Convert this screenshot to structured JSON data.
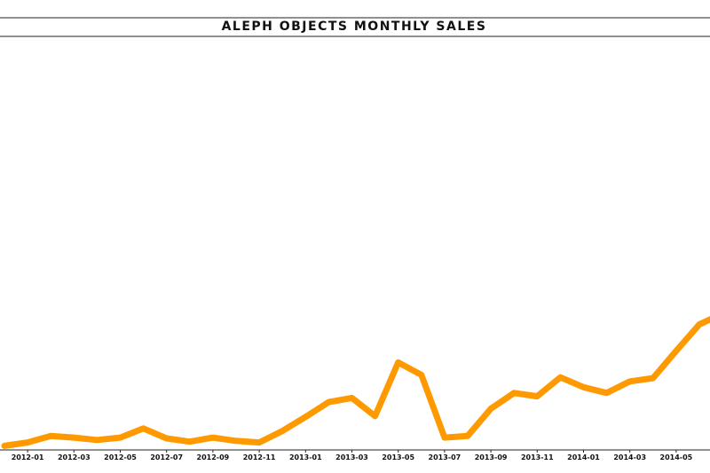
{
  "chart_data": {
    "type": "line",
    "title": "ALEPH OBJECTS MONTHLY SALES",
    "xlabel": "",
    "ylabel": "",
    "x": [
      "2011-12",
      "2012-01",
      "2012-02",
      "2012-03",
      "2012-04",
      "2012-05",
      "2012-06",
      "2012-07",
      "2012-08",
      "2012-09",
      "2012-10",
      "2012-11",
      "2012-12",
      "2013-01",
      "2013-02",
      "2013-03",
      "2013-04",
      "2013-05",
      "2013-06",
      "2013-07",
      "2013-08",
      "2013-09",
      "2013-10",
      "2013-11",
      "2013-12",
      "2014-01",
      "2014-02",
      "2014-03",
      "2014-04",
      "2014-05",
      "2014-06",
      "2014-07"
    ],
    "xtick_labels": [
      "2012-01",
      "2012-03",
      "2012-05",
      "2012-07",
      "2012-09",
      "2012-11",
      "2013-01",
      "2013-03",
      "2013-05",
      "2013-07",
      "2013-09",
      "2013-11",
      "2014-01",
      "2014-03",
      "2014-05"
    ],
    "series": [
      {
        "name": "",
        "color": "#ff9900",
        "values": [
          1.0,
          1.8,
          3.4,
          3.0,
          2.4,
          3.0,
          5.2,
          2.8,
          2.0,
          3.0,
          2.2,
          1.8,
          4.6,
          8.0,
          11.6,
          12.6,
          8.2,
          21.2,
          18.2,
          3.0,
          3.4,
          10.0,
          13.8,
          13.0,
          17.6,
          15.2,
          13.8,
          16.6,
          17.4,
          24.0,
          30.4,
          33.0
        ]
      }
    ],
    "ylim": [
      0,
      100
    ],
    "grid": false,
    "legend": "none"
  }
}
